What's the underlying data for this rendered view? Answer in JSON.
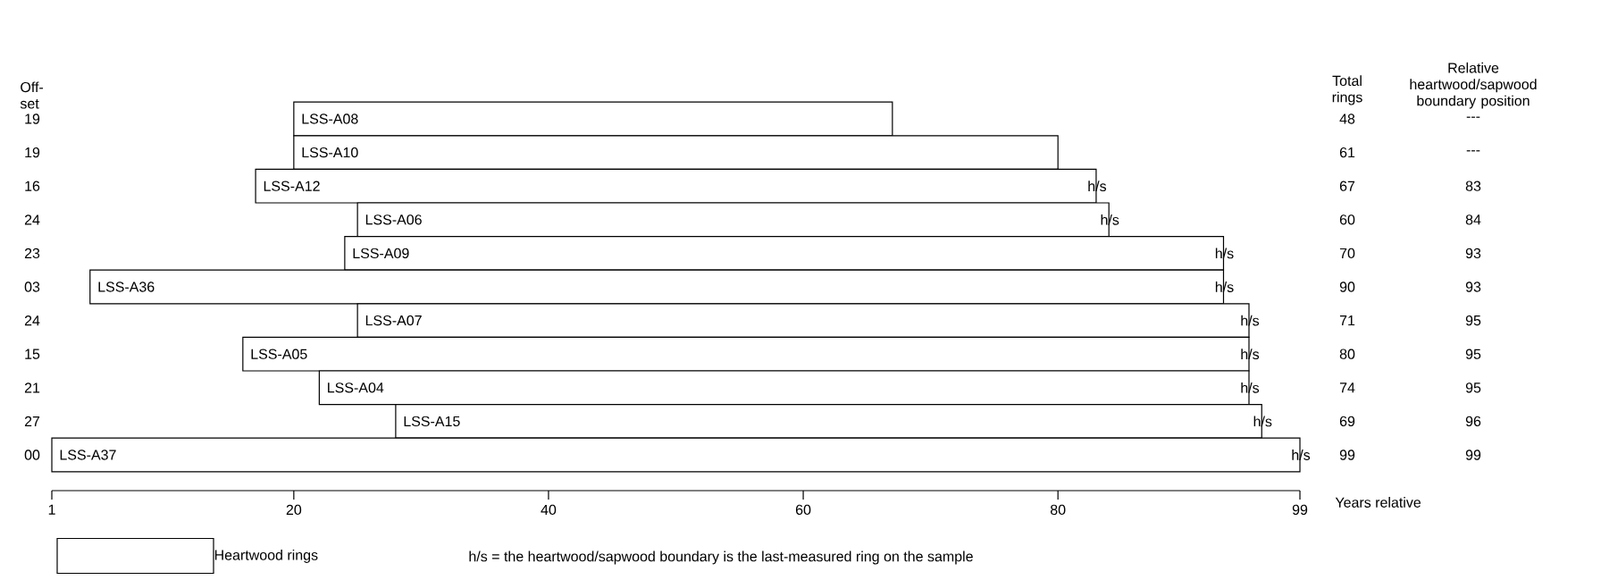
{
  "chart_data": {
    "type": "bar",
    "orientation": "horizontal",
    "categories": [
      "LSS-A08",
      "LSS-A10",
      "LSS-A12",
      "LSS-A06",
      "LSS-A09",
      "LSS-A36",
      "LSS-A07",
      "LSS-A05",
      "LSS-A04",
      "LSS-A15",
      "LSS-A37"
    ],
    "series": [
      {
        "name": "Heartwood rings",
        "color": "#ffffff",
        "base": [
          20,
          20,
          17,
          25,
          24,
          4,
          25,
          16,
          22,
          28,
          1
        ],
        "values": [
          47,
          60,
          66,
          59,
          69,
          89,
          70,
          79,
          73,
          68,
          98
        ],
        "value_labels": [
          null,
          null,
          "h/s",
          "h/s",
          "h/s",
          "h/s",
          "h/s",
          "h/s",
          "h/s",
          "h/s",
          "h/s"
        ]
      }
    ],
    "xlabel": "Years relative",
    "xlim": [
      1,
      99
    ],
    "xticks": [
      1,
      20,
      40,
      60,
      80,
      99
    ],
    "legend": "bottom",
    "annotations": [
      "Off-set",
      "Total rings",
      "Relative heartwood/sapwood boundary position",
      "h/s = the heartwood/sapwood boundary is the last-measured ring on the sample",
      "19",
      "48",
      "---",
      "19",
      "61",
      "---",
      "16",
      "67",
      "83",
      "24",
      "60",
      "84",
      "23",
      "70",
      "93",
      "03",
      "90",
      "93",
      "24",
      "71",
      "95",
      "15",
      "80",
      "95",
      "21",
      "74",
      "95",
      "27",
      "69",
      "96",
      "00",
      "99",
      "99"
    ]
  }
}
